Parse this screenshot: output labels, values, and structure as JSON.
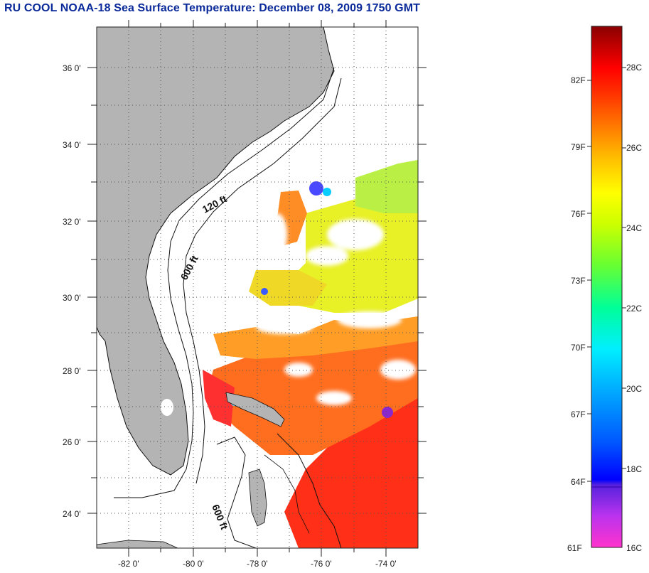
{
  "title": "RU COOL  NOAA-18  Sea Surface Temperature:  December 08, 2009 1750 GMT",
  "map": {
    "lat_labels": [
      "36 0'",
      "34 0'",
      "32 0'",
      "30 0'",
      "28 0'",
      "26 0'",
      "24 0'"
    ],
    "lon_labels": [
      "-82 0'",
      "-80 0'",
      "-78 0'",
      "-76 0'",
      "-74 0'"
    ],
    "contour_labels": [
      "120 ft",
      "600 ft",
      "600 ft"
    ],
    "land_color": "#b4b4b4"
  },
  "colorbar": {
    "fahrenheit_labels": [
      "82F",
      "79F",
      "76F",
      "73F",
      "70F",
      "67F",
      "64F",
      "61F"
    ],
    "celsius_labels": [
      "28C",
      "26C",
      "24C",
      "22C",
      "20C",
      "18C",
      "16C"
    ]
  }
}
